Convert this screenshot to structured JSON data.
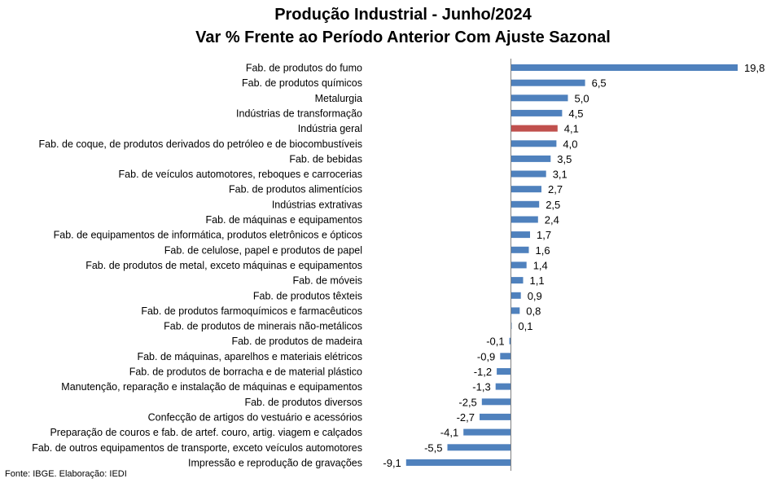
{
  "chart_data": {
    "type": "bar",
    "orientation": "horizontal",
    "title": "Produção Industrial - Junho/2024",
    "subtitle": "Var % Frente ao Período Anterior Com Ajuste Sazonal",
    "categories": [
      "Fab. de produtos do fumo",
      "Fab. de produtos químicos",
      "Metalurgia",
      "Indústrias de transformação",
      "Indústria geral",
      "Fab. de coque, de produtos derivados do petróleo e de biocombustíveis",
      "Fab. de bebidas",
      "Fab. de veículos automotores, reboques e carrocerias",
      "Fab. de produtos alimentícios",
      "Indústrias extrativas",
      "Fab. de máquinas e equipamentos",
      "Fab. de equipamentos de informática, produtos eletrônicos e ópticos",
      "Fab. de celulose, papel e produtos de papel",
      "Fab. de produtos de metal, exceto máquinas e equipamentos",
      "Fab. de móveis",
      "Fab. de produtos têxteis",
      "Fab. de produtos farmoquímicos e farmacêuticos",
      "Fab. de produtos de minerais não-metálicos",
      "Fab. de produtos de madeira",
      "Fab. de máquinas, aparelhos e materiais elétricos",
      "Fab. de produtos de borracha e de material plástico",
      "Manutenção, reparação e instalação de máquinas e equipamentos",
      "Fab. de produtos diversos",
      "Confecção de artigos do vestuário e acessórios",
      "Preparação de couros e fab. de artef. couro, artig. viagem e calçados",
      "Fab. de outros equipamentos de transporte, exceto veículos automotores",
      "Impressão e reprodução de gravações"
    ],
    "values": [
      19.8,
      6.5,
      5.0,
      4.5,
      4.1,
      4.0,
      3.5,
      3.1,
      2.7,
      2.5,
      2.4,
      1.7,
      1.6,
      1.4,
      1.1,
      0.9,
      0.8,
      0.1,
      -0.1,
      -0.9,
      -1.2,
      -1.3,
      -2.5,
      -2.7,
      -4.1,
      -5.5,
      -9.1
    ],
    "data_labels": [
      "19,8",
      "6,5",
      "5,0",
      "4,5",
      "4,1",
      "4,0",
      "3,5",
      "3,1",
      "2,7",
      "2,5",
      "2,4",
      "1,7",
      "1,6",
      "1,4",
      "1,1",
      "0,9",
      "0,8",
      "0,1",
      "-0,1",
      "-0,9",
      "-1,2",
      "-1,3",
      "-2,5",
      "-2,7",
      "-4,1",
      "-5,5",
      "-9,1"
    ],
    "highlight_category": "Indústria geral",
    "colors": {
      "bar": "#4f81bd",
      "highlight": "#c0504d",
      "axis": "#808080"
    },
    "xlim": [
      -9.1,
      19.8
    ],
    "grid": false,
    "legend": "none"
  },
  "source_note": "Fonte:  IBGE. Elaboração: IEDI"
}
